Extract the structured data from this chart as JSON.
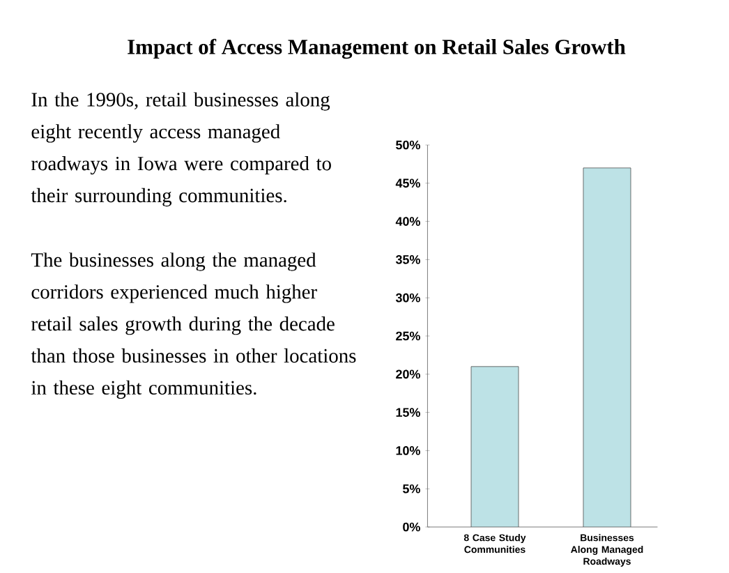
{
  "chart_data": {
    "type": "bar",
    "title": "Impact of Access Management on Retail Sales Growth",
    "categories": [
      "8 Case Study Communities",
      "Businesses Along Managed Roadways"
    ],
    "values": [
      21,
      47
    ],
    "color": "#bde2e6",
    "ylim": [
      0,
      50
    ],
    "yticks": [
      {
        "value": 0,
        "label": "0%"
      },
      {
        "value": 5,
        "label": "5%"
      },
      {
        "value": 10,
        "label": "10%"
      },
      {
        "value": 15,
        "label": "15%"
      },
      {
        "value": 20,
        "label": "20%"
      },
      {
        "value": 25,
        "label": "25%"
      },
      {
        "value": 30,
        "label": "30%"
      },
      {
        "value": 35,
        "label": "35%"
      },
      {
        "value": 40,
        "label": "40%"
      },
      {
        "value": 45,
        "label": "45%"
      },
      {
        "value": 50,
        "label": "50%"
      }
    ],
    "annotations": [
      "In the 1990s, retail businesses along eight recently access managed roadways in Iowa were compared to their surrounding communities.",
      "The businesses along the managed corridors experienced much higher retail sales growth during the decade than those businesses in other locations in these eight communities."
    ],
    "grid": false
  }
}
